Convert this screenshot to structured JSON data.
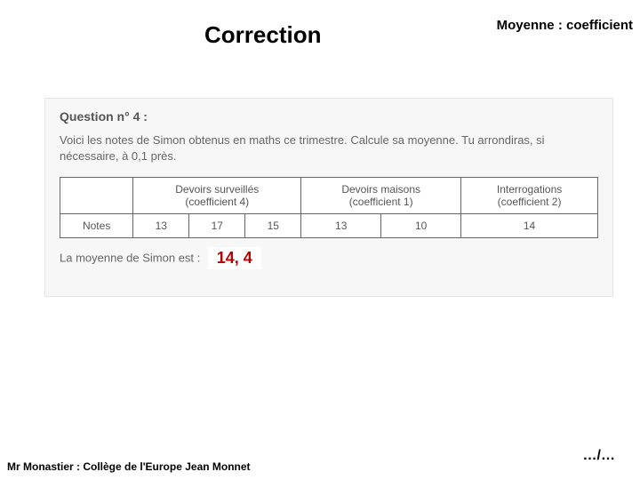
{
  "header": {
    "title": "Correction",
    "topic": "Moyenne : coefficient"
  },
  "question": {
    "label": "Question n° 4 :",
    "text": "Voici les notes de Simon obtenus en maths ce trimestre. Calcule sa moyenne. Tu arrondiras, si nécessaire, à 0,1 près.",
    "avg_label": "La moyenne de Simon est :",
    "answer": "14, 4"
  },
  "table": {
    "row_label": "Notes",
    "columns": [
      {
        "header_line1": "Devoirs surveillés",
        "header_line2": "(coefficient 4)",
        "span": 3
      },
      {
        "header_line1": "Devoirs maisons",
        "header_line2": "(coefficient 1)",
        "span": 2
      },
      {
        "header_line1": "Interrogations",
        "header_line2": "(coefficient 2)",
        "span": 1
      }
    ],
    "values": [
      "13",
      "17",
      "15",
      "13",
      "10",
      "14"
    ],
    "border_color": "#666666",
    "cell_bg": "#ffffff",
    "text_color": "#555555",
    "font_size": 12
  },
  "footer": {
    "left": "Mr Monastier : Collège de l'Europe Jean Monnet",
    "right": "…/…"
  },
  "styles": {
    "page_bg": "#ffffff",
    "box_bg": "#f7f7f7",
    "box_border": "#e5e5e5",
    "title_color": "#000000",
    "answer_color": "#b50202",
    "q_text_color": "#666666"
  }
}
